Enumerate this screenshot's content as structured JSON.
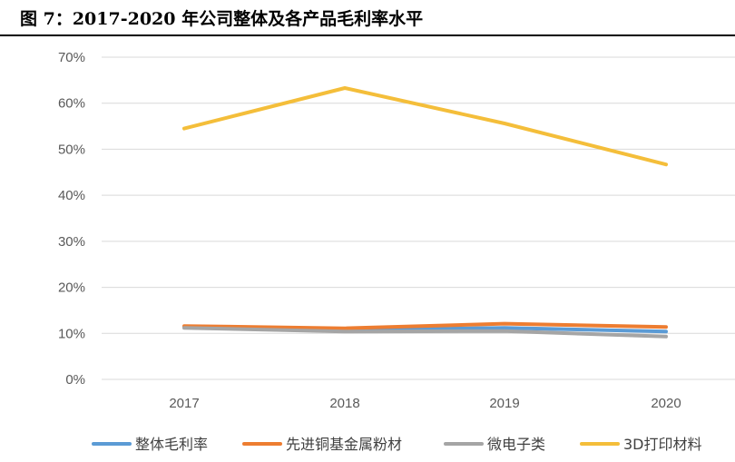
{
  "chart_data": {
    "type": "line",
    "title": "图 7：2017-2020 年公司整体及各产品毛利率水平",
    "categories": [
      "2017",
      "2018",
      "2019",
      "2020"
    ],
    "xlabel": "",
    "ylabel": "",
    "ylim": [
      0,
      0.7
    ],
    "yticks": [
      0,
      0.1,
      0.2,
      0.3,
      0.4,
      0.5,
      0.6,
      0.7
    ],
    "ytick_labels": [
      "0%",
      "10%",
      "20%",
      "30%",
      "40%",
      "50%",
      "60%",
      "70%"
    ],
    "grid": true,
    "legend_position": "bottom",
    "series": [
      {
        "name": "整体毛利率",
        "color": "#5B9BD5",
        "values": [
          0.113,
          0.107,
          0.112,
          0.104
        ]
      },
      {
        "name": "先进铜基金属粉材",
        "color": "#ED7D31",
        "values": [
          0.116,
          0.111,
          0.121,
          0.114
        ]
      },
      {
        "name": "微电子类",
        "color": "#A5A5A5",
        "values": [
          0.112,
          0.104,
          0.105,
          0.093
        ]
      },
      {
        "name": "3D打印材料",
        "color": "#F4BE3A",
        "values": [
          0.545,
          0.633,
          0.556,
          0.467
        ]
      }
    ]
  }
}
